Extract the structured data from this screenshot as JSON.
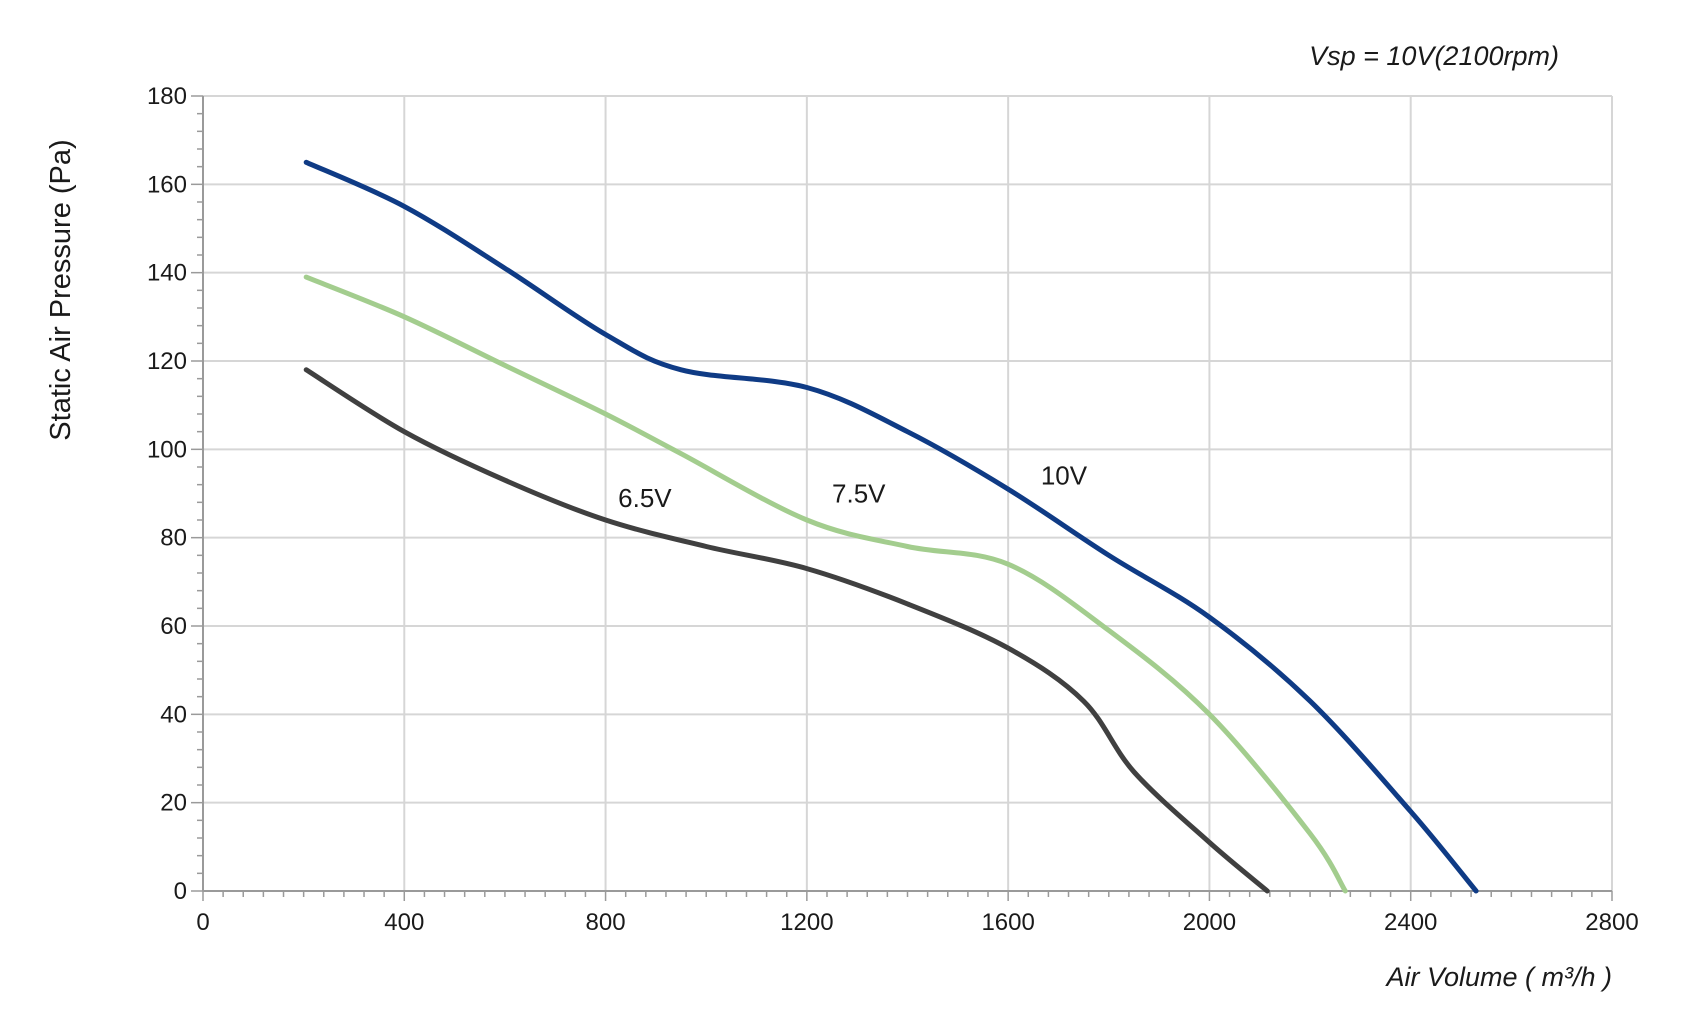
{
  "chart_data": {
    "type": "line",
    "annotation": "Vsp = 10V(2100rpm)",
    "xlabel": "Air Volume ( m³/h )",
    "ylabel": "Static Air Pressure  (Pa)",
    "xlim": [
      0,
      2800
    ],
    "ylim": [
      0,
      180
    ],
    "x_ticks": [
      0,
      400,
      800,
      1200,
      1600,
      2000,
      2400,
      2800
    ],
    "y_ticks": [
      0,
      20,
      40,
      60,
      80,
      100,
      120,
      140,
      160,
      180
    ],
    "x_minor_step": 40,
    "y_minor_step": 4,
    "grid": true,
    "series": [
      {
        "name": "10V",
        "color": "#0f3b85",
        "x": [
          205,
          400,
          600,
          800,
          950,
          1200,
          1400,
          1600,
          1800,
          2000,
          2200,
          2400,
          2530
        ],
        "y": [
          165,
          155,
          141,
          126,
          118,
          114,
          104,
          91,
          76,
          62,
          43,
          18,
          0
        ]
      },
      {
        "name": "7.5V",
        "color": "#a3cd8e",
        "x": [
          205,
          400,
          600,
          800,
          950,
          1200,
          1400,
          1600,
          1800,
          2000,
          2200,
          2270
        ],
        "y": [
          139,
          130,
          119,
          108,
          99,
          84,
          78,
          74,
          59,
          40,
          13,
          0
        ]
      },
      {
        "name": "6.5V",
        "color": "#404040",
        "x": [
          205,
          400,
          600,
          800,
          1000,
          1200,
          1400,
          1600,
          1750,
          1850,
          2000,
          2115
        ],
        "y": [
          118,
          104,
          93,
          84,
          78,
          73,
          65,
          55,
          43,
          27,
          11,
          0
        ]
      }
    ],
    "series_labels": [
      {
        "text": "10V",
        "x": 1665,
        "y": 92
      },
      {
        "text": "7.5V",
        "x": 1250,
        "y": 88
      },
      {
        "text": "6.5V",
        "x": 825,
        "y": 87
      }
    ]
  }
}
